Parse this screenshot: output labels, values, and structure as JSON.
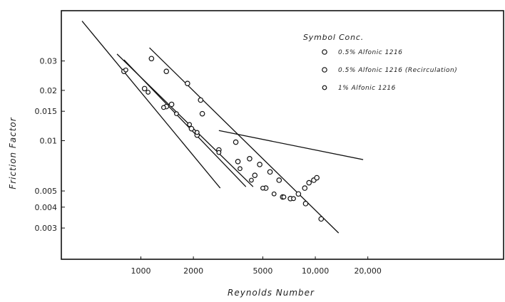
{
  "chart_data": {
    "type": "scatter",
    "title": "",
    "xlabel": "Reynolds Number",
    "ylabel": "Friction Factor",
    "xscale": "log",
    "yscale": "log",
    "xlim": [
      350,
      120000
    ],
    "ylim": [
      0.00195,
      0.06
    ],
    "x_ticks": [
      1000,
      2000,
      5000,
      10000,
      20000
    ],
    "x_tick_labels": [
      "1000",
      "2000",
      "5000",
      "10,000",
      "20,000"
    ],
    "y_ticks": [
      0.003,
      0.004,
      0.005,
      0.01,
      0.015,
      0.02,
      0.03
    ],
    "y_tick_labels": [
      "0.003",
      "0.004",
      "0.005",
      "0.01",
      "0.015",
      "0.02",
      "0.03"
    ],
    "grid": false,
    "legend": {
      "position": "top-right",
      "header": "Symbol  Conc.",
      "entries": [
        "0.5% Alfonic 1216",
        "0.5% Alfonic 1216 (Recirculation)",
        "1% Alfonic 1216"
      ]
    },
    "series": [
      {
        "name": "0.5% Alfonic 1216",
        "marker": "o",
        "x": [
          1150,
          1400,
          1850,
          2200,
          2250,
          3500,
          4200,
          4800,
          5500,
          6200,
          8800,
          10800
        ],
        "y": [
          0.031,
          0.026,
          0.022,
          0.0175,
          0.0145,
          0.0098,
          0.0078,
          0.0072,
          0.0065,
          0.0058,
          0.0042,
          0.0034
        ]
      },
      {
        "name": "0.5% Alfonic 1216 (Recirculation)",
        "marker": "o",
        "x": [
          800,
          1050,
          1400,
          1500,
          1950,
          2100,
          2800,
          3600,
          4500,
          5200,
          6500,
          7200,
          8000,
          8700,
          9200,
          9800,
          10200
        ],
        "y": [
          0.026,
          0.0205,
          0.016,
          0.0165,
          0.0118,
          0.0108,
          0.0088,
          0.0075,
          0.0062,
          0.0052,
          0.0046,
          0.0045,
          0.0048,
          0.0052,
          0.0056,
          0.0058,
          0.006
        ]
      },
      {
        "name": "1% Alfonic 1216",
        "marker": "o",
        "x": [
          820,
          1100,
          1350,
          1600,
          1900,
          2100,
          2800,
          3700,
          4300,
          5000,
          5800,
          6600,
          7500
        ],
        "y": [
          0.0265,
          0.0195,
          0.0158,
          0.0145,
          0.0125,
          0.0112,
          0.0085,
          0.0068,
          0.0058,
          0.0052,
          0.0048,
          0.0046,
          0.0045
        ]
      }
    ],
    "reference_lines": [
      {
        "x": [
          460,
          2850
        ],
        "y": [
          0.052,
          0.0052
        ]
      },
      {
        "x": [
          730,
          4400
        ],
        "y": [
          0.033,
          0.0053
        ]
      },
      {
        "x": [
          1120,
          13600
        ],
        "y": [
          0.036,
          0.0028
        ]
      },
      {
        "x": [
          800,
          4000
        ],
        "y": [
          0.0305,
          0.0053
        ]
      },
      {
        "x": [
          2800,
          18800
        ],
        "y": [
          0.0115,
          0.0077
        ]
      }
    ]
  }
}
